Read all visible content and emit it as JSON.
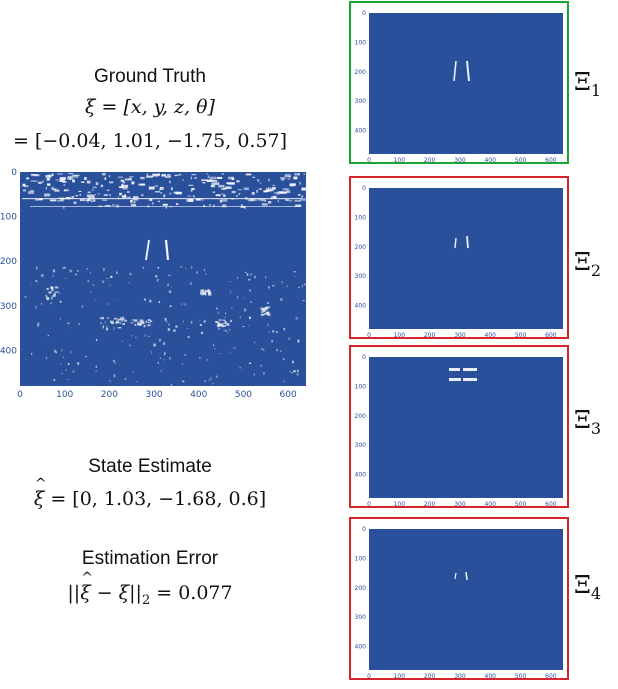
{
  "ground_truth": {
    "title": "Ground Truth",
    "line1": "ξ = [x, y, z, θ]",
    "line2": "= [−0.04, 1.01, −1.75, 0.57]"
  },
  "state_estimate": {
    "title": "State Estimate",
    "lhs": "ξ",
    "rhs": " = [0, 1.03, −1.68, 0.6]"
  },
  "estimation_error": {
    "title": "Estimation Error",
    "lhs_pre": "||",
    "lhs_hat": "ξ",
    "lhs_post": " − ξ||",
    "sub": "2",
    "rhs": " = 0.077"
  },
  "main_plot": {
    "x_ticks": [
      "0",
      "100",
      "200",
      "300",
      "400",
      "500",
      "600"
    ],
    "y_ticks": [
      "0",
      "100",
      "200",
      "300",
      "400"
    ]
  },
  "panels": [
    {
      "label": "Ξ",
      "sub": "1",
      "border": "green",
      "x_ticks": [
        "0",
        "100",
        "200",
        "300",
        "400",
        "500",
        "600"
      ],
      "y_ticks": [
        "0",
        "100",
        "200",
        "300",
        "400"
      ]
    },
    {
      "label": "Ξ",
      "sub": "2",
      "border": "red",
      "x_ticks": [
        "0",
        "100",
        "200",
        "300",
        "400",
        "500",
        "600"
      ],
      "y_ticks": [
        "0",
        "100",
        "200",
        "300",
        "400"
      ]
    },
    {
      "label": "Ξ",
      "sub": "3",
      "border": "red",
      "x_ticks": [
        "0",
        "100",
        "200",
        "300",
        "400",
        "500",
        "600"
      ],
      "y_ticks": [
        "0",
        "100",
        "200",
        "300",
        "400"
      ]
    },
    {
      "label": "Ξ",
      "sub": "4",
      "border": "red",
      "x_ticks": [
        "0",
        "100",
        "200",
        "300",
        "400",
        "500",
        "600"
      ],
      "y_ticks": [
        "0",
        "100",
        "200",
        "300",
        "400"
      ]
    }
  ],
  "colors": {
    "plot_blue": "#2a4f9b",
    "tick_blue": "#2a4f9b",
    "green": "#1aa634",
    "red": "#d8252c"
  }
}
